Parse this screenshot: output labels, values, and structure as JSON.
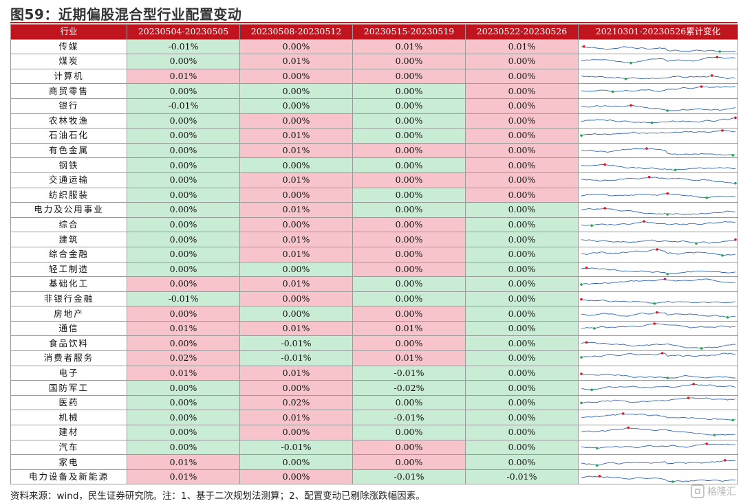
{
  "figure_title": "图59：近期偏股混合型行业配置变动",
  "columns": [
    "行业",
    "20230504-20230505",
    "20230508-20230512",
    "20230515-20230519",
    "20230522-20230526",
    "20210301-20230526累计变化"
  ],
  "colors": {
    "header_bg": "#c0151f",
    "positive": "#f8c4cb",
    "negative": "#c9ecd4",
    "line": "#2f66b3",
    "max_marker": "#e8141b",
    "min_marker": "#22a84a"
  },
  "rows": [
    {
      "industry": "传媒",
      "values": [
        "-0.01%",
        "0.00%",
        "0.01%",
        "0.01%"
      ],
      "signs": [
        "neg",
        "pos",
        "pos",
        "pos"
      ]
    },
    {
      "industry": "煤炭",
      "values": [
        "0.00%",
        "0.01%",
        "0.00%",
        "0.00%"
      ],
      "signs": [
        "neg",
        "pos",
        "pos",
        "pos"
      ]
    },
    {
      "industry": "计算机",
      "values": [
        "0.01%",
        "0.00%",
        "0.00%",
        "0.00%"
      ],
      "signs": [
        "pos",
        "pos",
        "pos",
        "pos"
      ]
    },
    {
      "industry": "商贸零售",
      "values": [
        "0.00%",
        "0.00%",
        "0.00%",
        "0.00%"
      ],
      "signs": [
        "neg",
        "neg",
        "neg",
        "pos"
      ]
    },
    {
      "industry": "银行",
      "values": [
        "-0.01%",
        "0.00%",
        "0.00%",
        "0.00%"
      ],
      "signs": [
        "neg",
        "neg",
        "neg",
        "pos"
      ]
    },
    {
      "industry": "农林牧渔",
      "values": [
        "0.00%",
        "0.00%",
        "0.00%",
        "0.00%"
      ],
      "signs": [
        "neg",
        "pos",
        "neg",
        "pos"
      ]
    },
    {
      "industry": "石油石化",
      "values": [
        "0.00%",
        "0.01%",
        "0.00%",
        "0.00%"
      ],
      "signs": [
        "neg",
        "pos",
        "neg",
        "pos"
      ]
    },
    {
      "industry": "有色金属",
      "values": [
        "0.00%",
        "0.01%",
        "0.00%",
        "0.00%"
      ],
      "signs": [
        "neg",
        "pos",
        "pos",
        "pos"
      ]
    },
    {
      "industry": "钢铁",
      "values": [
        "0.00%",
        "0.00%",
        "0.00%",
        "0.00%"
      ],
      "signs": [
        "neg",
        "neg",
        "neg",
        "pos"
      ]
    },
    {
      "industry": "交通运输",
      "values": [
        "0.00%",
        "0.01%",
        "0.00%",
        "0.00%"
      ],
      "signs": [
        "neg",
        "pos",
        "pos",
        "pos"
      ]
    },
    {
      "industry": "纺织服装",
      "values": [
        "0.00%",
        "0.00%",
        "0.00%",
        "0.00%"
      ],
      "signs": [
        "neg",
        "pos",
        "neg",
        "pos"
      ]
    },
    {
      "industry": "电力及公用事业",
      "values": [
        "0.00%",
        "0.01%",
        "0.00%",
        "0.00%"
      ],
      "signs": [
        "neg",
        "pos",
        "neg",
        "neg"
      ]
    },
    {
      "industry": "综合",
      "values": [
        "0.00%",
        "0.00%",
        "0.00%",
        "0.00%"
      ],
      "signs": [
        "neg",
        "pos",
        "pos",
        "neg"
      ]
    },
    {
      "industry": "建筑",
      "values": [
        "0.00%",
        "0.01%",
        "0.00%",
        "0.00%"
      ],
      "signs": [
        "neg",
        "pos",
        "pos",
        "neg"
      ]
    },
    {
      "industry": "综合金融",
      "values": [
        "0.00%",
        "0.01%",
        "0.00%",
        "0.00%"
      ],
      "signs": [
        "neg",
        "pos",
        "pos",
        "neg"
      ]
    },
    {
      "industry": "轻工制造",
      "values": [
        "0.00%",
        "0.00%",
        "0.00%",
        "0.00%"
      ],
      "signs": [
        "neg",
        "neg",
        "pos",
        "neg"
      ]
    },
    {
      "industry": "基础化工",
      "values": [
        "0.00%",
        "0.01%",
        "0.00%",
        "0.00%"
      ],
      "signs": [
        "pos",
        "pos",
        "neg",
        "neg"
      ]
    },
    {
      "industry": "非银行金融",
      "values": [
        "-0.01%",
        "0.00%",
        "0.00%",
        "0.00%"
      ],
      "signs": [
        "neg",
        "pos",
        "neg",
        "neg"
      ]
    },
    {
      "industry": "房地产",
      "values": [
        "0.00%",
        "0.00%",
        "0.00%",
        "0.00%"
      ],
      "signs": [
        "pos",
        "neg",
        "pos",
        "neg"
      ]
    },
    {
      "industry": "通信",
      "values": [
        "0.01%",
        "0.01%",
        "0.01%",
        "0.00%"
      ],
      "signs": [
        "pos",
        "pos",
        "pos",
        "neg"
      ]
    },
    {
      "industry": "食品饮料",
      "values": [
        "0.00%",
        "-0.01%",
        "0.00%",
        "0.00%"
      ],
      "signs": [
        "pos",
        "neg",
        "pos",
        "neg"
      ]
    },
    {
      "industry": "消费者服务",
      "values": [
        "0.02%",
        "-0.01%",
        "0.01%",
        "0.00%"
      ],
      "signs": [
        "pos",
        "neg",
        "pos",
        "neg"
      ]
    },
    {
      "industry": "电子",
      "values": [
        "0.01%",
        "0.01%",
        "-0.01%",
        "0.00%"
      ],
      "signs": [
        "pos",
        "pos",
        "neg",
        "neg"
      ]
    },
    {
      "industry": "国防军工",
      "values": [
        "0.00%",
        "0.00%",
        "-0.02%",
        "0.00%"
      ],
      "signs": [
        "neg",
        "pos",
        "neg",
        "neg"
      ]
    },
    {
      "industry": "医药",
      "values": [
        "0.00%",
        "0.02%",
        "0.00%",
        "0.00%"
      ],
      "signs": [
        "neg",
        "pos",
        "neg",
        "neg"
      ]
    },
    {
      "industry": "机械",
      "values": [
        "0.00%",
        "0.01%",
        "-0.01%",
        "0.00%"
      ],
      "signs": [
        "neg",
        "pos",
        "neg",
        "neg"
      ]
    },
    {
      "industry": "建材",
      "values": [
        "0.00%",
        "0.00%",
        "0.00%",
        "0.00%"
      ],
      "signs": [
        "neg",
        "pos",
        "neg",
        "neg"
      ]
    },
    {
      "industry": "汽车",
      "values": [
        "0.00%",
        "-0.01%",
        "0.00%",
        "0.00%"
      ],
      "signs": [
        "neg",
        "neg",
        "pos",
        "neg"
      ]
    },
    {
      "industry": "家电",
      "values": [
        "0.01%",
        "0.00%",
        "0.00%",
        "0.00%"
      ],
      "signs": [
        "pos",
        "neg",
        "pos",
        "neg"
      ]
    },
    {
      "industry": "电力设备及新能源",
      "values": [
        "0.01%",
        "0.00%",
        "-0.01%",
        "-0.01%"
      ],
      "signs": [
        "pos",
        "pos",
        "neg",
        "neg"
      ]
    }
  ],
  "footer": "资料来源：wind，民生证券研究院。注：1、基于二次规划法测算；2、配置变动已剔除涨跌幅因素。",
  "watermark": "格隆汇",
  "watermark_icon": "logo-mark-icon"
}
